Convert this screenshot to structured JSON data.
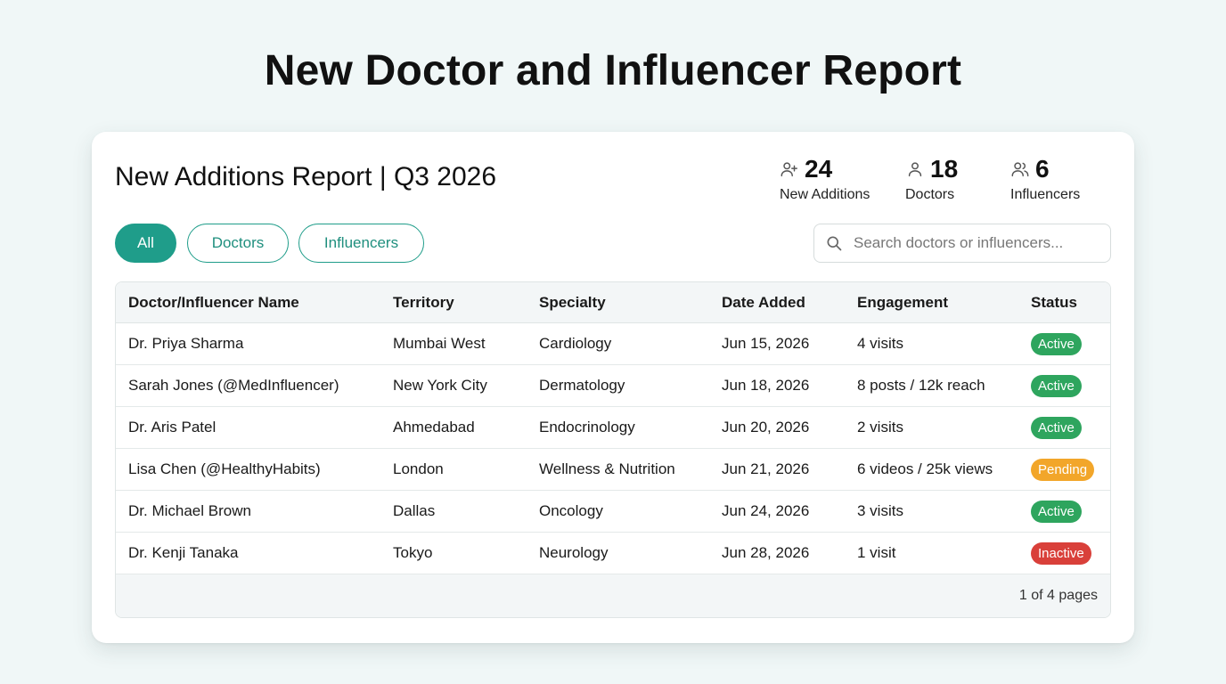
{
  "page_title": "New Doctor and Influencer Report",
  "report": {
    "title": "New Additions Report | Q3 2026"
  },
  "stats": [
    {
      "icon": "user-plus-icon",
      "value": "24",
      "label": "New Additions"
    },
    {
      "icon": "user-icon",
      "value": "18",
      "label": "Doctors"
    },
    {
      "icon": "users-icon",
      "value": "6",
      "label": "Influencers"
    }
  ],
  "filters": [
    {
      "label": "All",
      "active": true
    },
    {
      "label": "Doctors",
      "active": false
    },
    {
      "label": "Influencers",
      "active": false
    }
  ],
  "search": {
    "placeholder": "Search doctors or influencers...",
    "value": ""
  },
  "table": {
    "columns": [
      "Doctor/Influencer Name",
      "Territory",
      "Specialty",
      "Date Added",
      "Engagement",
      "Status"
    ],
    "rows": [
      [
        "Dr. Priya Sharma",
        "Mumbai West",
        "Cardiology",
        "Jun 15, 2026",
        "4 visits",
        "Active"
      ],
      [
        "Sarah Jones (@MedInfluencer)",
        "New York City",
        "Dermatology",
        "Jun 18, 2026",
        "8 posts / 12k reach",
        "Active"
      ],
      [
        "Dr. Aris Patel",
        "Ahmedabad",
        "Endocrinology",
        "Jun 20, 2026",
        "2 visits",
        "Active"
      ],
      [
        "Lisa Chen (@HealthyHabits)",
        "London",
        "Wellness & Nutrition",
        "Jun 21, 2026",
        "6 videos / 25k views",
        "Pending"
      ],
      [
        "Dr. Michael Brown",
        "Dallas",
        "Oncology",
        "Jun 24, 2026",
        "3 visits",
        "Active"
      ],
      [
        "Dr. Kenji Tanaka",
        "Tokyo",
        "Neurology",
        "Jun 28, 2026",
        "1 visit",
        "Inactive"
      ]
    ]
  },
  "status_colors": {
    "Active": "#2ea55e",
    "Pending": "#f2a62a",
    "Inactive": "#d9403a"
  },
  "accent_color": "#1f9d8a",
  "pagination": {
    "text": "1 of 4 pages"
  }
}
